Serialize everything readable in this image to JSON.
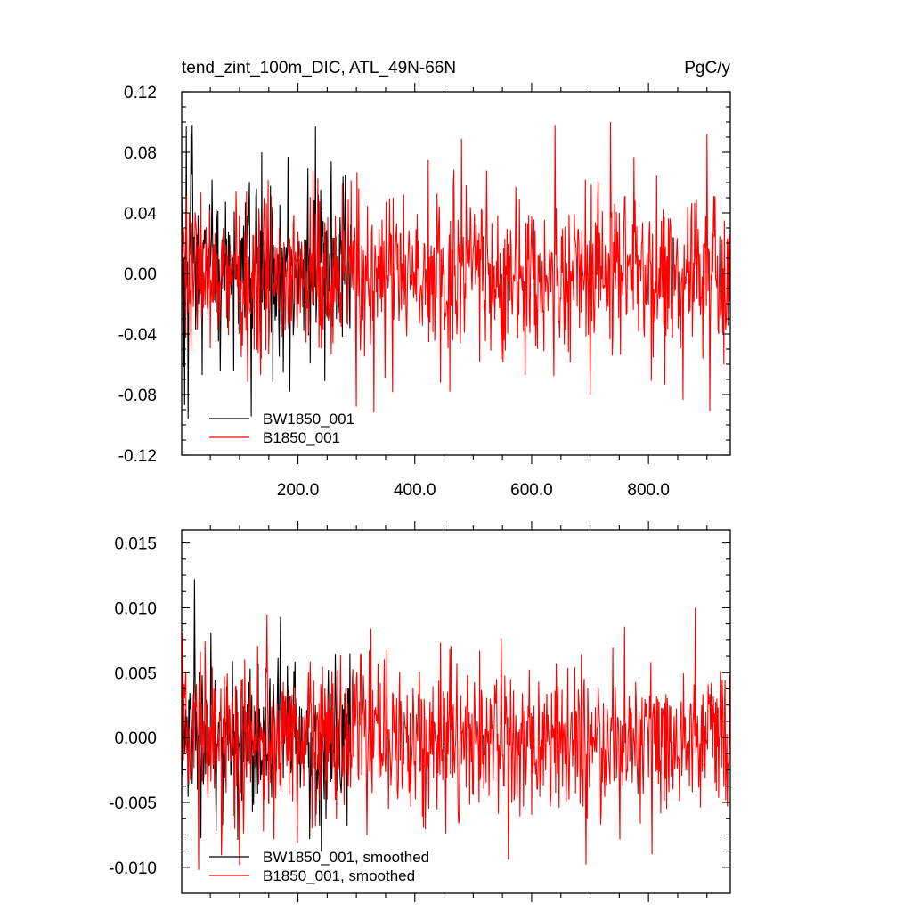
{
  "chart_data": [
    {
      "type": "line",
      "title_left": "tend_zint_100m_DIC, ATL_49N-66N",
      "title_right": "PgC/y",
      "xlim": [
        1,
        940
      ],
      "ylim": [
        -0.12,
        0.12
      ],
      "xticks": [
        200,
        400,
        600,
        800
      ],
      "xtick_labels": [
        "200.0",
        "400.0",
        "600.0",
        "800.0"
      ],
      "yticks": [
        -0.12,
        -0.08,
        -0.04,
        0.0,
        0.04,
        0.08,
        0.12
      ],
      "ytick_labels": [
        "-0.12",
        "-0.08",
        "-0.04",
        "0.00",
        "0.04",
        "0.08",
        "0.12"
      ],
      "legend_position": "bottom-left",
      "series": [
        {
          "name": "BW1850_001",
          "color": "#000000",
          "x_range": [
            1,
            290
          ],
          "amplitude": 0.032,
          "peaks": [
            [
              9,
              0.097
            ],
            [
              17,
              0.094
            ],
            [
              12,
              -0.096
            ],
            [
              6,
              -0.087
            ],
            [
              138,
              0.08
            ],
            [
              183,
              0.077
            ],
            [
              230,
              0.097
            ],
            [
              186,
              -0.078
            ]
          ]
        },
        {
          "name": "B1850_001",
          "color": "#ff0000",
          "x_range": [
            1,
            940
          ],
          "amplitude": 0.028,
          "peaks": [
            [
              480,
              0.089
            ],
            [
              640,
              0.098
            ],
            [
              735,
              0.1
            ],
            [
              900,
              0.092
            ],
            [
              460,
              -0.078
            ],
            [
              700,
              -0.08
            ],
            [
              905,
              -0.091
            ],
            [
              300,
              -0.088
            ]
          ]
        }
      ]
    },
    {
      "type": "line",
      "xlim": [
        1,
        940
      ],
      "ylim": [
        -0.012,
        0.016
      ],
      "yticks": [
        -0.01,
        -0.005,
        0.0,
        0.005,
        0.01,
        0.015
      ],
      "ytick_labels": [
        "-0.010",
        "-0.005",
        "0.000",
        "0.005",
        "0.010",
        "0.015"
      ],
      "legend_position": "bottom-left",
      "series": [
        {
          "name": "BW1850_001, smoothed",
          "color": "#000000",
          "x_range": [
            1,
            290
          ],
          "amplitude": 0.0028,
          "peaks": [
            [
              23,
              0.0122
            ],
            [
              170,
              0.0093
            ],
            [
              60,
              -0.0072
            ],
            [
              240,
              -0.0088
            ]
          ]
        },
        {
          "name": "B1850_001, smoothed",
          "color": "#ff0000",
          "x_range": [
            1,
            940
          ],
          "amplitude": 0.003,
          "peaks": [
            [
              880,
              0.01
            ],
            [
              325,
              0.0084
            ],
            [
              30,
              -0.0102
            ],
            [
              560,
              -0.0094
            ]
          ]
        }
      ]
    }
  ]
}
